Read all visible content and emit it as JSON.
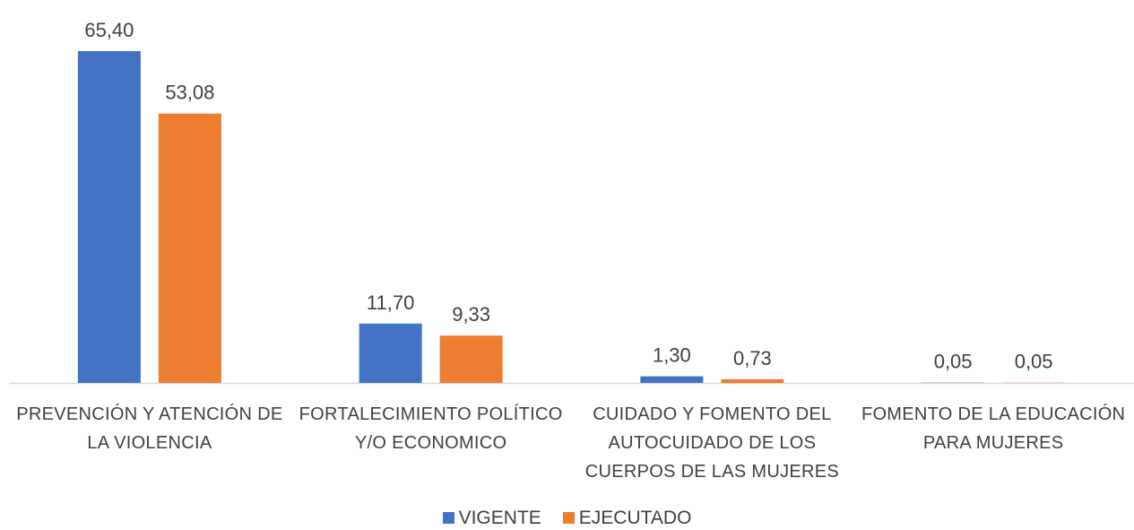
{
  "chart_data": {
    "type": "bar",
    "categories": [
      "PREVENCIÓN Y ATENCIÓN DE LA VIOLENCIA",
      "FORTALECIMIENTO POLÍTICO Y/O ECONOMICO",
      "CUIDADO Y FOMENTO DEL AUTOCUIDADO DE LOS CUERPOS DE LAS MUJERES",
      "FOMENTO DE LA EDUCACIÓN PARA MUJERES"
    ],
    "series": [
      {
        "name": "VIGENTE",
        "color": "#4472c4",
        "values": [
          65.4,
          11.7,
          1.3,
          0.05
        ],
        "value_labels": [
          "65,40",
          "11,70",
          "1,30",
          "0,05"
        ]
      },
      {
        "name": "EJECUTADO",
        "color": "#ed7d31",
        "values": [
          53.08,
          9.33,
          0.73,
          0.05
        ],
        "value_labels": [
          "53,08",
          "9,33",
          "0,73",
          "0,05"
        ]
      }
    ],
    "ylim": [
      0,
      65.4
    ]
  }
}
